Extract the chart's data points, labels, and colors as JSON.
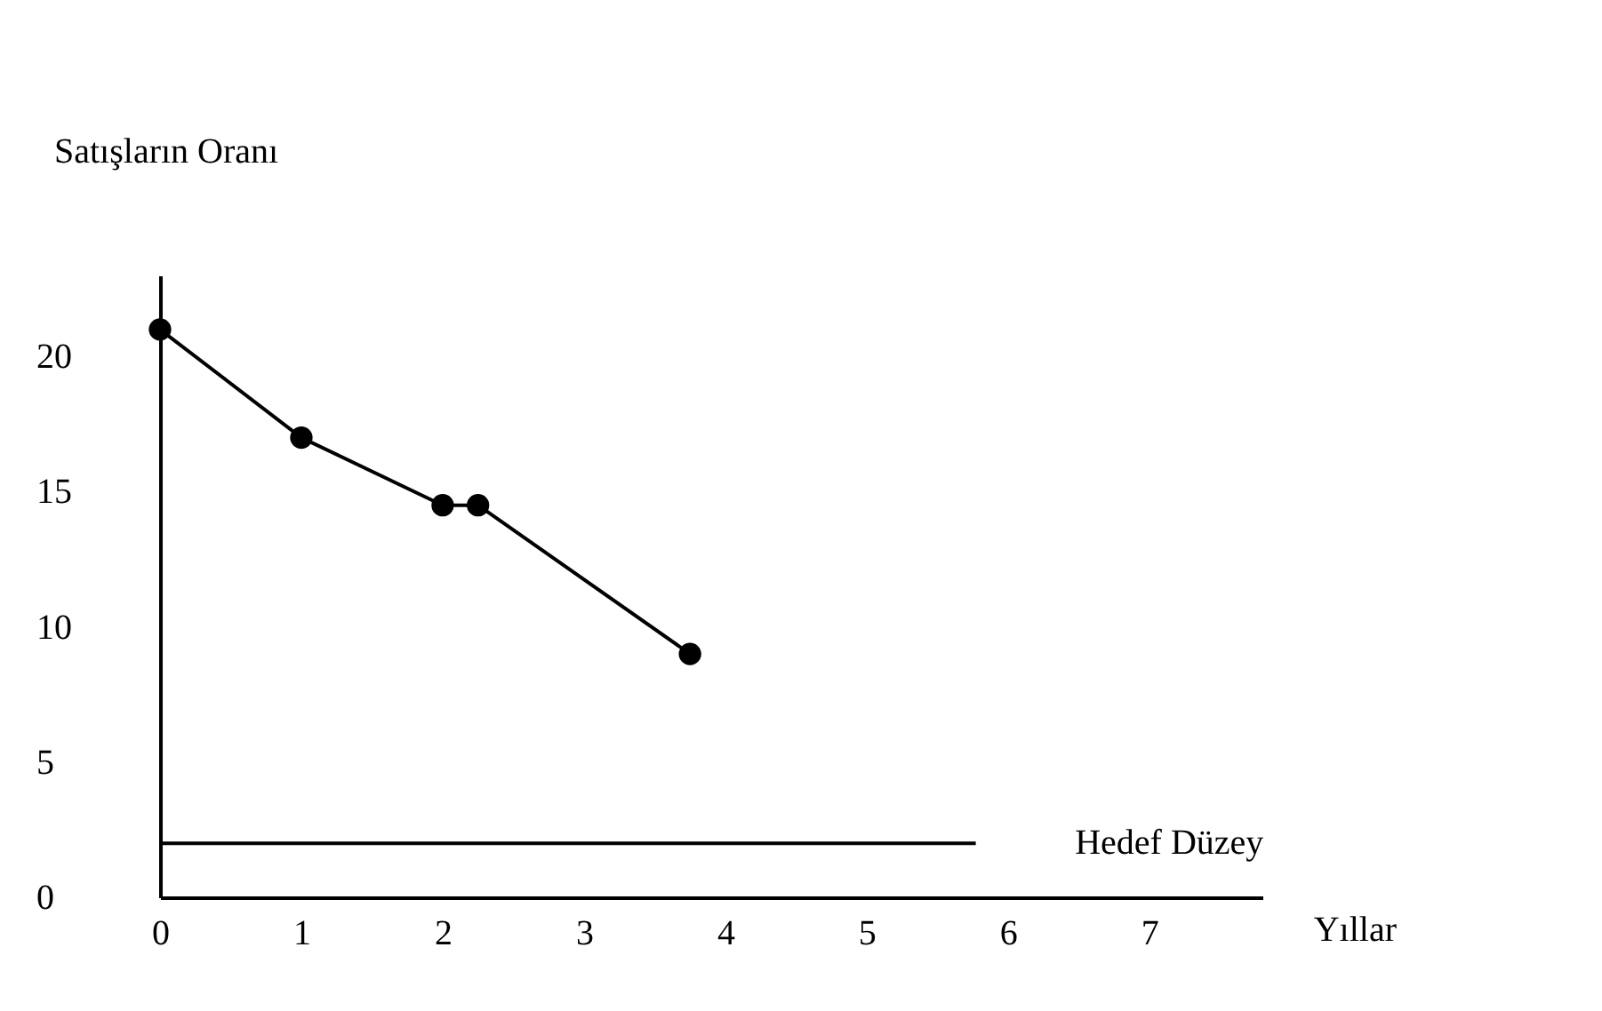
{
  "chart_data": {
    "type": "line",
    "xlabel": "Yıllar",
    "ylabel": "Satışların Oranı",
    "x": [
      0,
      1,
      2,
      2.25,
      3.75
    ],
    "series": [
      {
        "color": "#000000",
        "values": [
          21,
          17,
          14.5,
          14.5,
          9
        ]
      }
    ],
    "xlim": [
      0,
      7.8
    ],
    "xticks": [
      0,
      1,
      2,
      3,
      4,
      5,
      6,
      7
    ],
    "ylim": [
      0,
      23
    ],
    "yticks": [
      0,
      5,
      10,
      15,
      20
    ],
    "ref_lines": [
      {
        "axis": "y",
        "value": 2,
        "label": "Hedef Düzey"
      }
    ],
    "marker": "circle",
    "line_style": "solid",
    "grid": false
  }
}
